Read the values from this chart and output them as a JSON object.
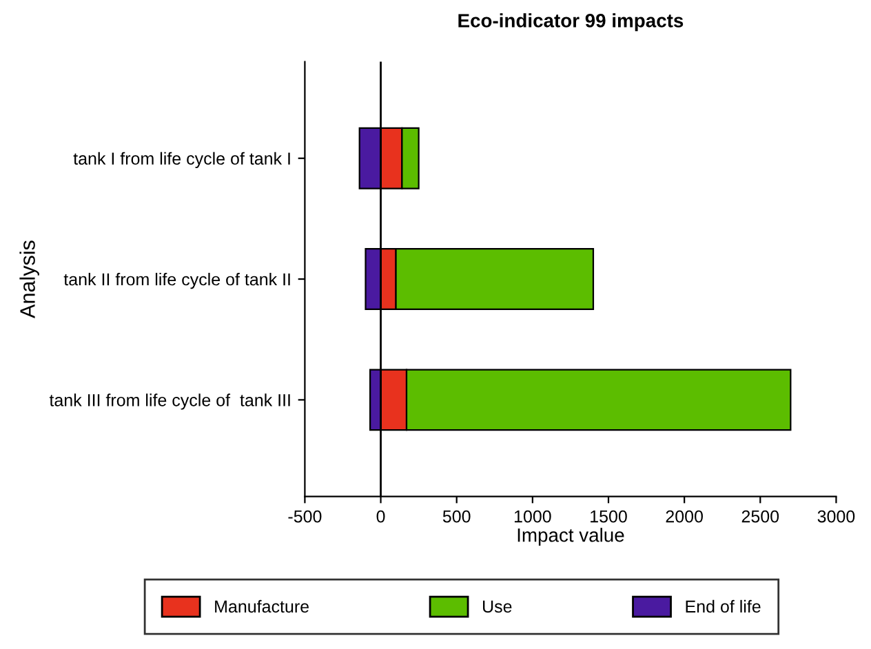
{
  "chart_data": {
    "type": "bar",
    "orientation": "horizontal",
    "stacked": true,
    "title": "Eco-indicator 99 impacts",
    "xlabel": "Impact value",
    "ylabel": "Analysis",
    "categories": [
      "tank I from life cycle of tank I",
      "tank II from life cycle of tank II",
      "tank III from life cycle of  tank III"
    ],
    "series": [
      {
        "name": "Manufacture",
        "color": "#e8321e",
        "values": [
          140,
          100,
          170
        ]
      },
      {
        "name": "Use",
        "color": "#5cbd00",
        "values": [
          110,
          1300,
          2530
        ]
      },
      {
        "name": "End of life",
        "color": "#4a1aa0",
        "values": [
          -140,
          -100,
          -70
        ]
      }
    ],
    "xlim": [
      -500,
      3000
    ],
    "xticks": [
      -500,
      0,
      500,
      1000,
      1500,
      2000,
      2500,
      3000
    ],
    "ref_lines": [
      {
        "axis": "x",
        "value": 0,
        "color": "#000000"
      }
    ],
    "grid": false,
    "legend": "bottom"
  }
}
